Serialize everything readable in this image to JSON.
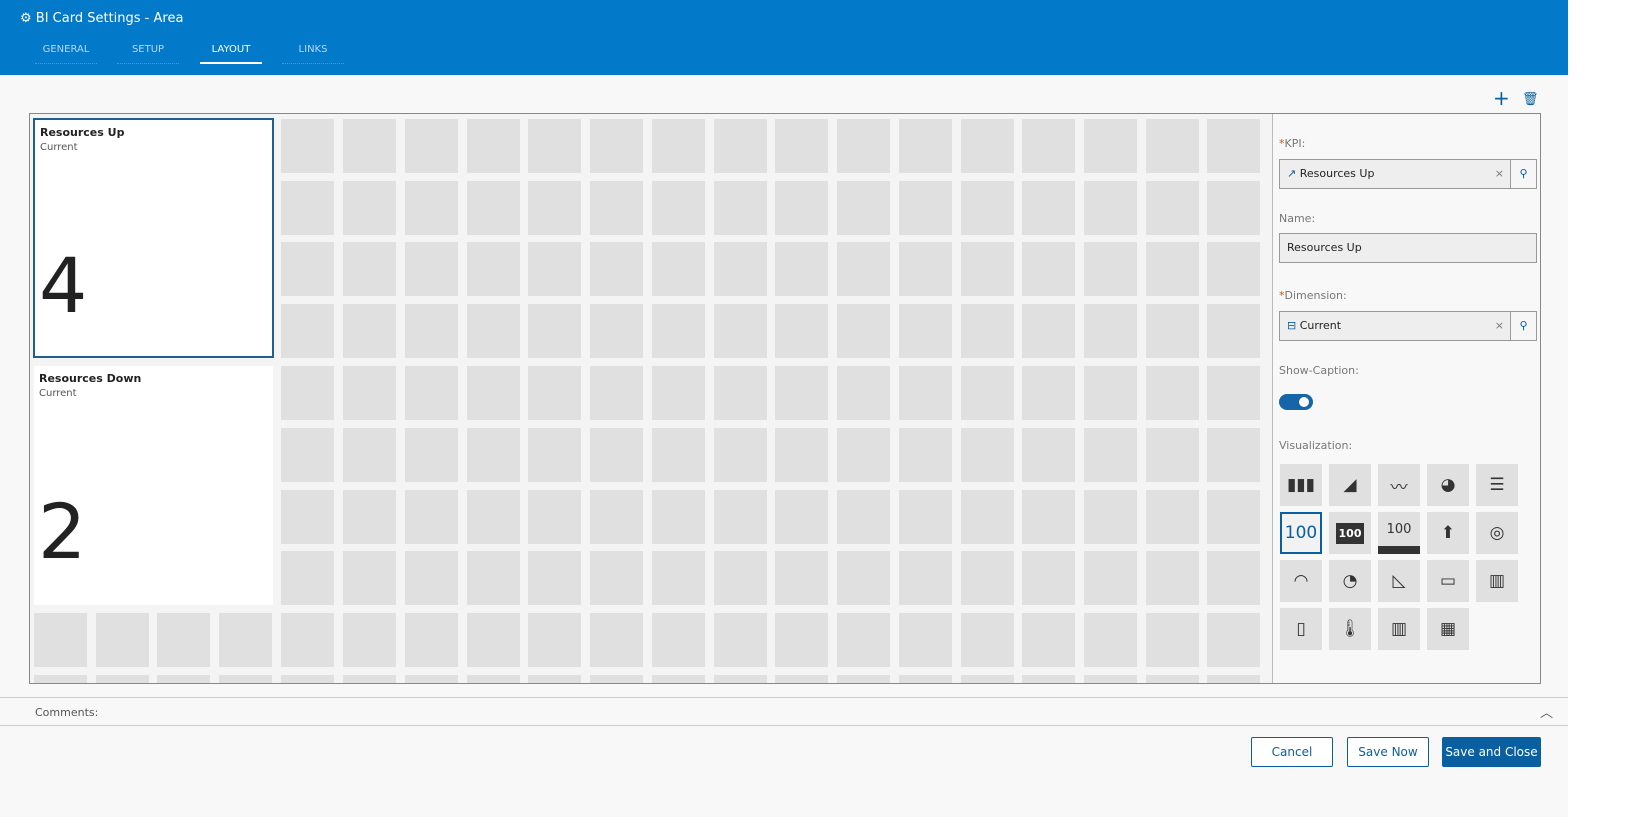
{
  "header": {
    "title": "BI Card Settings - Area",
    "tabs": [
      "GENERAL",
      "SETUP",
      "LAYOUT",
      "LINKS"
    ],
    "active_tab": "LAYOUT"
  },
  "cards": [
    {
      "title": "Resources Up",
      "subtitle": "Current",
      "value": "4"
    },
    {
      "title": "Resources Down",
      "subtitle": "Current",
      "value": "2"
    }
  ],
  "panel": {
    "add_icon": "+",
    "delete_icon": "trash-icon",
    "kpi_label": "KPI:",
    "kpi_value": "Resources Up",
    "name_label": "Name:",
    "name_value": "Resources Up",
    "dimension_label": "Dimension:",
    "dimension_value": "Current",
    "caption_label": "Show-Caption:",
    "caption_on": true,
    "viz_label": "Visualization:",
    "viz": [
      "bar-chart",
      "area-chart",
      "line-chart",
      "pie-chart",
      "list",
      "100",
      "100",
      "100",
      "arrow-up",
      "donut",
      "half-gauge",
      "speedometer",
      "wedge",
      "bullet",
      "progress-bars",
      "battery",
      "thermometer",
      "barcode",
      "treemap"
    ],
    "viz_selected": 5
  },
  "footer": {
    "comments": "Comments:",
    "cancel": "Cancel",
    "save_now": "Save Now",
    "save_close": "Save and Close"
  },
  "colors": {
    "header": "#0279c9",
    "accent": "#0a5fa0"
  }
}
